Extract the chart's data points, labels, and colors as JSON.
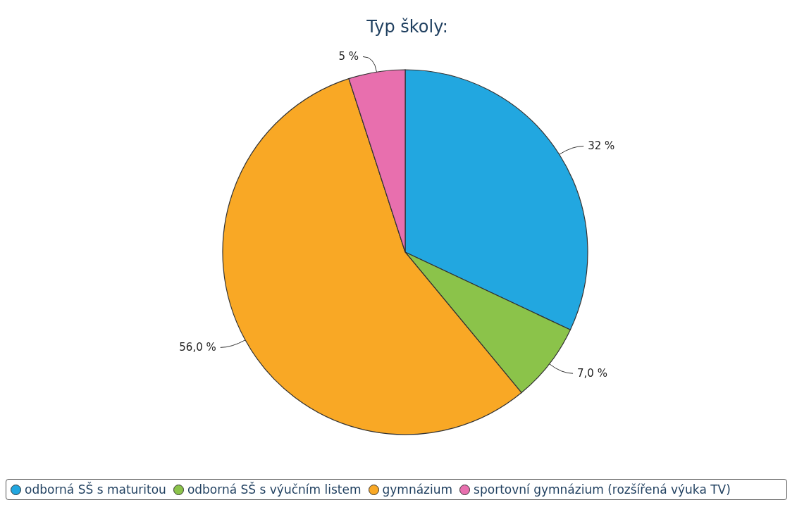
{
  "chart_data": {
    "type": "pie",
    "title": "Typ školy:",
    "categories": [
      "odborná SŠ s maturitou",
      "odborná SŠ s výučním listem",
      "gymnázium",
      "sportovní gymnázium (rozšířená výuka TV)"
    ],
    "values": [
      32,
      7,
      56,
      5
    ],
    "colors": [
      "#22a7e0",
      "#8bc34a",
      "#f9a825",
      "#e86fae"
    ],
    "value_labels": [
      "32 %",
      "7,0 %",
      "56,0 %",
      "5 %"
    ],
    "legend": "bottom"
  }
}
